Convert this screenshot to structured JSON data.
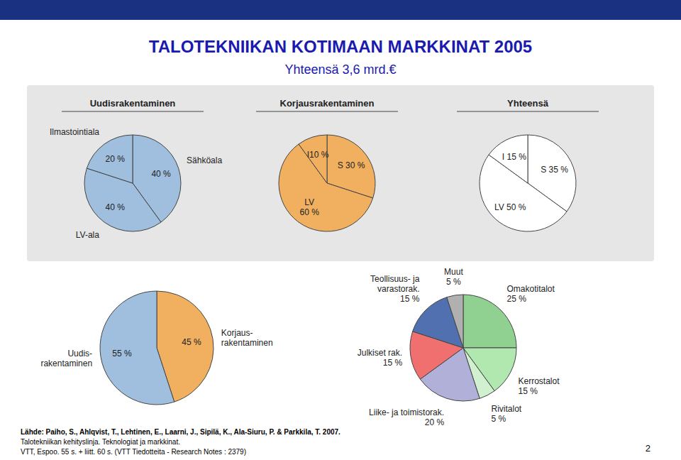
{
  "title": "TALOTEKNIIKAN KOTIMAAN MARKKINAT 2005",
  "subtitle": "Yhteensä 3,6 mrd.€",
  "annotations": [
    "Lähde: Paiho, S., Ahlqvist, T., Lehtinen, E., Laarni, J., Sipilä, K., Ala-Siuru, P. & Parkkila, T. 2007.",
    "Talotekniikan kehityslinja. Teknologiat ja markkinat.",
    "VTT, Espoo. 55 s. + liitt. 60 s. (VTT Tiedotteita - Research Notes : 2379)",
    "2"
  ],
  "chart_data": [
    {
      "type": "pie",
      "title": "Uudisrakentaminen",
      "categories": [
        "Sähköala",
        "LV-ala",
        "Ilmastointiala"
      ],
      "values": [
        40,
        40,
        20
      ],
      "value_labels": [
        "40 %",
        "40 %",
        "20 %"
      ],
      "color": "#a0bedd",
      "data_labels": true
    },
    {
      "type": "pie",
      "title": "Korjausrakentaminen",
      "values": [
        30,
        60,
        10
      ],
      "value_labels": [
        "S 30 %",
        "LV\n60 %",
        "I10 %"
      ],
      "color": "#f0b060",
      "data_labels": true
    },
    {
      "type": "pie",
      "title": "Yhteensä",
      "values": [
        35,
        50,
        15
      ],
      "value_labels": [
        "S 35 %",
        "LV 50 %",
        "I 15 %"
      ],
      "color": "#ffffff",
      "data_labels": true
    },
    {
      "type": "pie",
      "categories": [
        "Korjaus-\nrakentaminen",
        "Uudis-\nrakentaminen"
      ],
      "values": [
        45,
        55
      ],
      "value_labels": [
        "45 %",
        "55 %"
      ],
      "colors": [
        "#f0b060",
        "#a0bedd"
      ],
      "data_labels": true
    },
    {
      "type": "pie",
      "categories": [
        "Omakotitalot",
        "Kerrostalot",
        "Rivitalot",
        "Liike- ja toimistorak.",
        "Julkiset rak.",
        "Teollisuus- ja\nvarastorak.",
        "Muut"
      ],
      "values": [
        25,
        15,
        5,
        20,
        15,
        15,
        5
      ],
      "value_labels": [
        "25 %",
        "15 %",
        "5 %",
        "20 %",
        "15 %",
        "15 %",
        "5 %"
      ],
      "colors": [
        "#90d090",
        "#b0e8b0",
        "#d0f0d0",
        "#b0b0d8",
        "#f07070",
        "#5070b0",
        "#b0b0b0"
      ],
      "data_labels": true
    }
  ]
}
